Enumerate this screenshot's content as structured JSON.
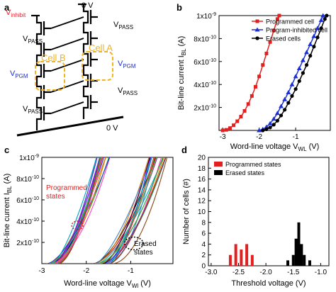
{
  "panel_letters": {
    "a": "a",
    "b": "b",
    "c": "c",
    "d": "d"
  },
  "circuit": {
    "v_inhibit_main": "V",
    "v_inhibit_sub": "inhibit",
    "top_voltage": "0 V",
    "bottom_voltage": "0 V",
    "v_pass_main": "V",
    "v_pass_sub": "PASS",
    "v_pgm_main": "V",
    "v_pgm_sub": "PGM",
    "cell_b_label": "Cell B",
    "cell_a_label": "Cell A",
    "colors": {
      "inhibit": "#e8202a",
      "pgm": "#1f2fd0",
      "cell_box": "#f0b323"
    }
  },
  "chart_data": [
    {
      "panel": "b",
      "type": "line",
      "xlabel": "Word-line voltage V",
      "xlabel_sub": "WL",
      "xlabel_unit": "(V)",
      "ylabel": "Bit-line current I",
      "ylabel_sub": "BL",
      "ylabel_unit": "(A)",
      "xlim": [
        -3.1,
        -0.05
      ],
      "ylim": [
        0,
        1e-09
      ],
      "x_ticks": [
        {
          "v": -3,
          "label": "-3"
        },
        {
          "v": -2,
          "label": "-2"
        },
        {
          "v": -1,
          "label": "-1"
        }
      ],
      "y_ticks": [
        {
          "v": 2e-10,
          "label": "2x10"
        },
        {
          "v": 4e-10,
          "label": "4x10"
        },
        {
          "v": 6e-10,
          "label": "6x10"
        },
        {
          "v": 8e-10,
          "label": "8x10"
        },
        {
          "v": 1e-09,
          "label": "1x10"
        }
      ],
      "y_tick_exps": {
        "2e-10": "-10",
        "4e-10": "-10",
        "6e-10": "-10",
        "8e-10": "-10",
        "1e-9": "-9"
      },
      "legend_position": "top-right",
      "series": [
        {
          "name": "Programmed cell",
          "color": "#e32020",
          "marker": "square",
          "x": [
            -3.0,
            -2.9,
            -2.8,
            -2.7,
            -2.6,
            -2.5,
            -2.4,
            -2.3,
            -2.2,
            -2.1,
            -2.0,
            -1.9,
            -1.8,
            -1.7,
            -1.6,
            -1.5,
            -1.45
          ],
          "y": [
            0,
            5e-12,
            2e-11,
            4.5e-11,
            8e-11,
            1.2e-10,
            1.7e-10,
            2.3e-10,
            3e-10,
            3.8e-10,
            4.7e-10,
            5.7e-10,
            6.7e-10,
            7.7e-10,
            8.7e-10,
            9.7e-10,
            1e-09
          ]
        },
        {
          "name": "Program-inhibited cell",
          "color": "#1c2fd6",
          "marker": "triangle",
          "x": [
            -2.0,
            -1.9,
            -1.8,
            -1.7,
            -1.6,
            -1.5,
            -1.4,
            -1.3,
            -1.2,
            -1.1,
            -1.0,
            -0.9,
            -0.8,
            -0.7,
            -0.6,
            -0.5,
            -0.4,
            -0.3,
            -0.25
          ],
          "y": [
            0,
            1e-11,
            3e-11,
            6e-11,
            1e-10,
            1.5e-10,
            2.1e-10,
            2.7e-10,
            3.3e-10,
            4e-10,
            4.7e-10,
            5.4e-10,
            6.1e-10,
            6.8e-10,
            7.5e-10,
            8.2e-10,
            8.9e-10,
            9.6e-10,
            1e-09
          ]
        },
        {
          "name": "Erased cells",
          "color": "#000000",
          "marker": "circle",
          "x": [
            -1.9,
            -1.8,
            -1.7,
            -1.6,
            -1.5,
            -1.4,
            -1.3,
            -1.2,
            -1.1,
            -1.0,
            -0.9,
            -0.8,
            -0.7,
            -0.6,
            -0.5,
            -0.4,
            -0.3,
            -0.2,
            -0.15
          ],
          "y": [
            0,
            1e-11,
            2.5e-11,
            5e-11,
            8.5e-11,
            1.3e-10,
            1.8e-10,
            2.4e-10,
            3e-10,
            3.6e-10,
            4.3e-10,
            5e-10,
            5.7e-10,
            6.5e-10,
            7.3e-10,
            8.1e-10,
            8.9e-10,
            9.7e-10,
            1e-09
          ]
        }
      ]
    },
    {
      "panel": "c",
      "type": "line",
      "xlabel": "Word-line voltage V",
      "xlabel_sub": "Wl",
      "xlabel_unit": "(V)",
      "ylabel": "Bit-line current I",
      "ylabel_sub": "BL",
      "ylabel_unit": "(A)",
      "xlim": [
        -3.0,
        -0.05
      ],
      "ylim": [
        0,
        1e-09
      ],
      "x_ticks": [
        {
          "v": -3,
          "label": "-3"
        },
        {
          "v": -2,
          "label": "-2"
        },
        {
          "v": -1,
          "label": "-1"
        }
      ],
      "y_ticks": [
        {
          "v": 2e-10,
          "label": "2x10"
        },
        {
          "v": 4e-10,
          "label": "4x10"
        },
        {
          "v": 6e-10,
          "label": "6x10"
        },
        {
          "v": 8e-10,
          "label": "8x10"
        },
        {
          "v": 1e-09,
          "label": "1x10"
        }
      ],
      "y_tick_exps": {
        "2e-10": "-10",
        "4e-10": "-10",
        "6e-10": "-10",
        "8e-10": "-10",
        "1e-9": "-9"
      },
      "annotations": [
        {
          "text": "Programmed",
          "color": "#e32020"
        },
        {
          "text": "states",
          "color": "#e32020"
        },
        {
          "text": "Erased",
          "color": "#000000"
        },
        {
          "text": "states",
          "color": "#000000"
        }
      ],
      "groups": [
        {
          "group": "programmed",
          "x0_range": [
            -2.9,
            -2.6
          ],
          "x1_range": [
            -1.8,
            -1.45
          ],
          "count": 22
        },
        {
          "group": "erased",
          "x0_range": [
            -1.85,
            -1.4
          ],
          "x1_range": [
            -0.6,
            -0.15
          ],
          "count": 22
        }
      ],
      "palette": [
        "#1f3fd8",
        "#e8202a",
        "#29a329",
        "#7a2fb8",
        "#00a3c8",
        "#d97a00",
        "#8b4513",
        "#ff3fbf",
        "#101010",
        "#6aa84f",
        "#3d85c6",
        "#cc0000",
        "#9900ff",
        "#20b2aa"
      ]
    },
    {
      "panel": "d",
      "type": "bar",
      "xlabel": "Threshold voltage (V)",
      "ylabel": "Number of cells (#)",
      "xlim": [
        -3.05,
        -0.85
      ],
      "ylim": [
        0,
        20
      ],
      "x_ticks": [
        {
          "v": -3.0,
          "label": "-3.0"
        },
        {
          "v": -2.5,
          "label": "-2.5"
        },
        {
          "v": -2.0,
          "label": "-2.0"
        },
        {
          "v": -1.5,
          "label": "-1.5"
        },
        {
          "v": -1.0,
          "label": "-1.0"
        }
      ],
      "y_ticks": [
        {
          "v": 0,
          "label": "0"
        },
        {
          "v": 2,
          "label": "2"
        },
        {
          "v": 4,
          "label": "4"
        },
        {
          "v": 6,
          "label": "6"
        },
        {
          "v": 8,
          "label": "8"
        },
        {
          "v": 10,
          "label": "10"
        },
        {
          "v": 12,
          "label": "12"
        },
        {
          "v": 14,
          "label": "14"
        },
        {
          "v": 16,
          "label": "16"
        },
        {
          "v": 18,
          "label": "18"
        },
        {
          "v": 20,
          "label": "20"
        }
      ],
      "legend_position": "top-left",
      "series": [
        {
          "name": "Programmed states",
          "color": "#e32020",
          "x": [
            -2.65,
            -2.55,
            -2.45,
            -2.35,
            -2.25
          ],
          "values": [
            2,
            4,
            3,
            4,
            2
          ]
        },
        {
          "name": "Erased states",
          "color": "#000000",
          "x": [
            -1.6,
            -1.5,
            -1.45,
            -1.4,
            -1.35,
            -1.3,
            -1.2
          ],
          "values": [
            1,
            2,
            5,
            8,
            4,
            2,
            1
          ]
        }
      ]
    }
  ]
}
